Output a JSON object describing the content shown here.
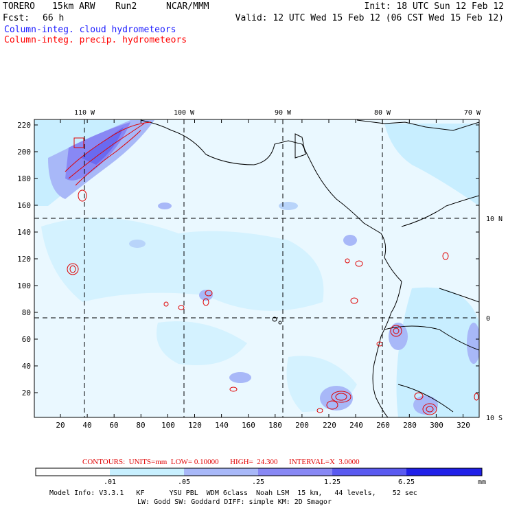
{
  "header": {
    "model": "TORERO",
    "resolution": "15km ARW",
    "run": "Run2",
    "org": "NCAR/MMM",
    "init": "Init: 18 UTC Sun 12 Feb 12",
    "fcst_label": "Fcst:",
    "fcst_value": "66 h",
    "valid": "Valid: 12 UTC Wed 15 Feb 12 (06 CST Wed 15 Feb 12)",
    "field1": "Column-integ. cloud hydrometeors",
    "field2": "Column-integ. precip. hydrometeors"
  },
  "axes": {
    "x_ticks": [
      "20",
      "40",
      "60",
      "80",
      "100",
      "120",
      "140",
      "160",
      "180",
      "200",
      "220",
      "240",
      "260",
      "280",
      "300",
      "320"
    ],
    "y_ticks": [
      "20",
      "40",
      "60",
      "80",
      "100",
      "120",
      "140",
      "160",
      "180",
      "200",
      "220"
    ],
    "lon_labels": [
      "110 W",
      "100 W",
      "90 W",
      "80 W",
      "70 W"
    ],
    "lat_labels": [
      "10 N",
      "0",
      "10 S"
    ]
  },
  "contour_info": {
    "text": "CONTOURS:  UNITS=mm  LOW= 0.10000      HIGH=  24.300      INTERVAL=X  3.0000"
  },
  "colorbar": {
    "levels": [
      ".01",
      ".05",
      ".25",
      "1.25",
      "6.25"
    ],
    "unit": "mm",
    "colors": [
      "#ffffff",
      "#c8f0ff",
      "#a8b8f8",
      "#8888f4",
      "#5a5af0",
      "#2020e8"
    ]
  },
  "footer": {
    "line1": "Model Info: V3.3.1   KF      YSU PBL  WDM 6class  Noah LSM  15 km,   44 levels,    52 sec",
    "line2": "LW: Godd SW: Goddard DIFF: simple KM: 2D Smagor"
  }
}
